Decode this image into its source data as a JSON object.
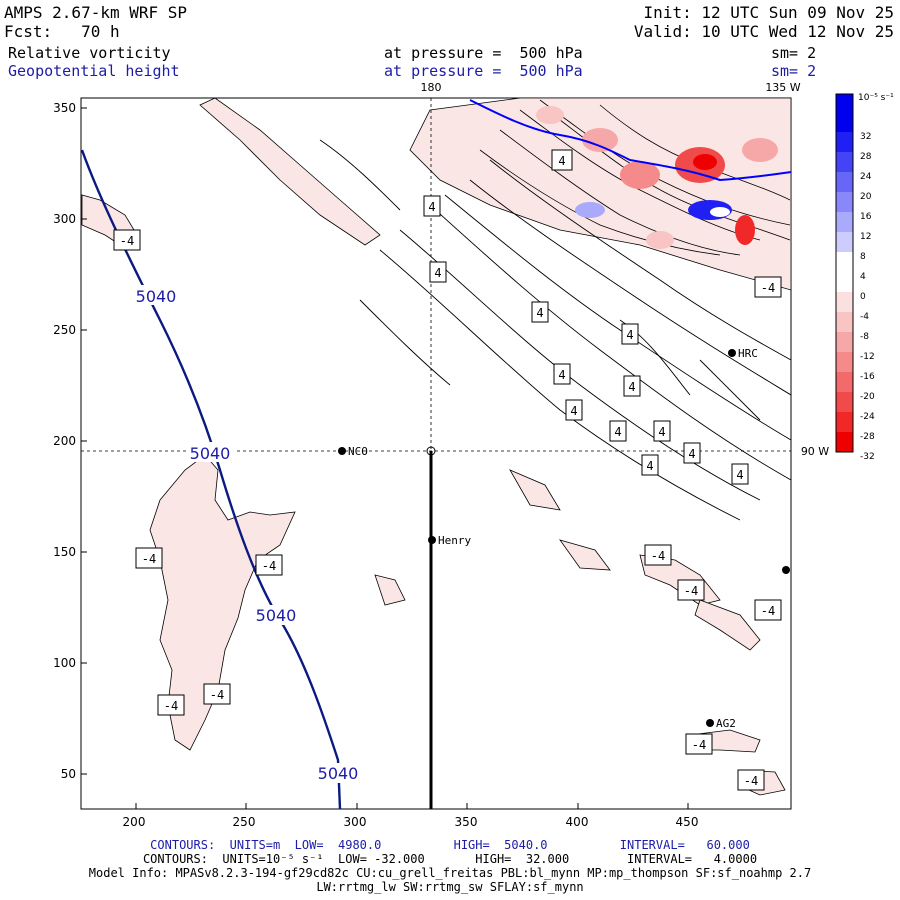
{
  "header": {
    "model": "AMPS 2.67-km WRF SP",
    "init": "Init: 12 UTC Sun 09 Nov 25",
    "fcst": "Fcst:   70 h",
    "valid": "Valid: 10 UTC Wed 12 Nov 25",
    "field1_name": "Relative vorticity",
    "field1_level": "at pressure =  500 hPa",
    "field1_sm": "sm= 2",
    "field2_name": "Geopotential height",
    "field2_level": "at pressure =  500 hPa",
    "field2_sm": "sm= 2"
  },
  "map": {
    "meridian_180_label": "180",
    "meridian_135w_label": "135 W",
    "meridian_90w_label": "90 W",
    "x_ticks": [
      "200",
      "250",
      "300",
      "350",
      "400",
      "450"
    ],
    "y_ticks": [
      "50",
      "100",
      "150",
      "200",
      "250",
      "300",
      "350"
    ],
    "geopotential_labels": [
      "5040",
      "5040",
      "5040",
      "5040"
    ],
    "vorticity_labels": [
      "-4",
      "-4",
      "-4",
      "-4",
      "-4",
      "-4",
      "-4",
      "-4",
      "-4",
      "-4",
      "-4",
      "-4",
      "4",
      "4",
      "4",
      "4",
      "4",
      "4",
      "4",
      "4",
      "4",
      "4",
      "4",
      "4",
      "4",
      "4",
      "4"
    ],
    "stations": [
      {
        "name": "NCO"
      },
      {
        "name": "Henry"
      },
      {
        "name": "HRC"
      },
      {
        "name": "AG2"
      }
    ],
    "colors": {
      "geopotential": "#0a1a80",
      "positive_vorticity": "#ff0000",
      "negative_vorticity": "#0000ff",
      "light_pink": "#fbe6e6"
    }
  },
  "colorbar": {
    "unit_label": "10⁻⁵ s⁻¹",
    "tick_labels": [
      "32",
      "28",
      "24",
      "20",
      "16",
      "12",
      "8",
      "4",
      "0",
      "-4",
      "-8",
      "-12",
      "-16",
      "-20",
      "-24",
      "-28",
      "-32"
    ],
    "bands": [
      "#0000ee",
      "#2020f4",
      "#4444f6",
      "#6666f8",
      "#8888fa",
      "#aaaafc",
      "#ccccfd",
      "#ffffff",
      "#ffffff",
      "#fbe0e0",
      "#f8c4c4",
      "#f6a8a8",
      "#f48a8a",
      "#f26a6a",
      "#f04a4a",
      "#f02828",
      "#ee0000"
    ]
  },
  "footer": {
    "line1": "CONTOURS:  UNITS=m  LOW=  4980.0          HIGH=  5040.0          INTERVAL=   60.000",
    "line2": "CONTOURS:  UNITS=10⁻⁵ s⁻¹  LOW= -32.000       HIGH=  32.000        INTERVAL=   4.0000",
    "line3": "Model Info: MPASv8.2.3-194-gf29cd82c CU:cu_grell_freitas PBL:bl_mynn MP:mp_thompson SF:sf_noahmp 2.7",
    "line4": "LW:rrtmg_lw SW:rrtmg_sw SFLAY:sf_mynn"
  }
}
